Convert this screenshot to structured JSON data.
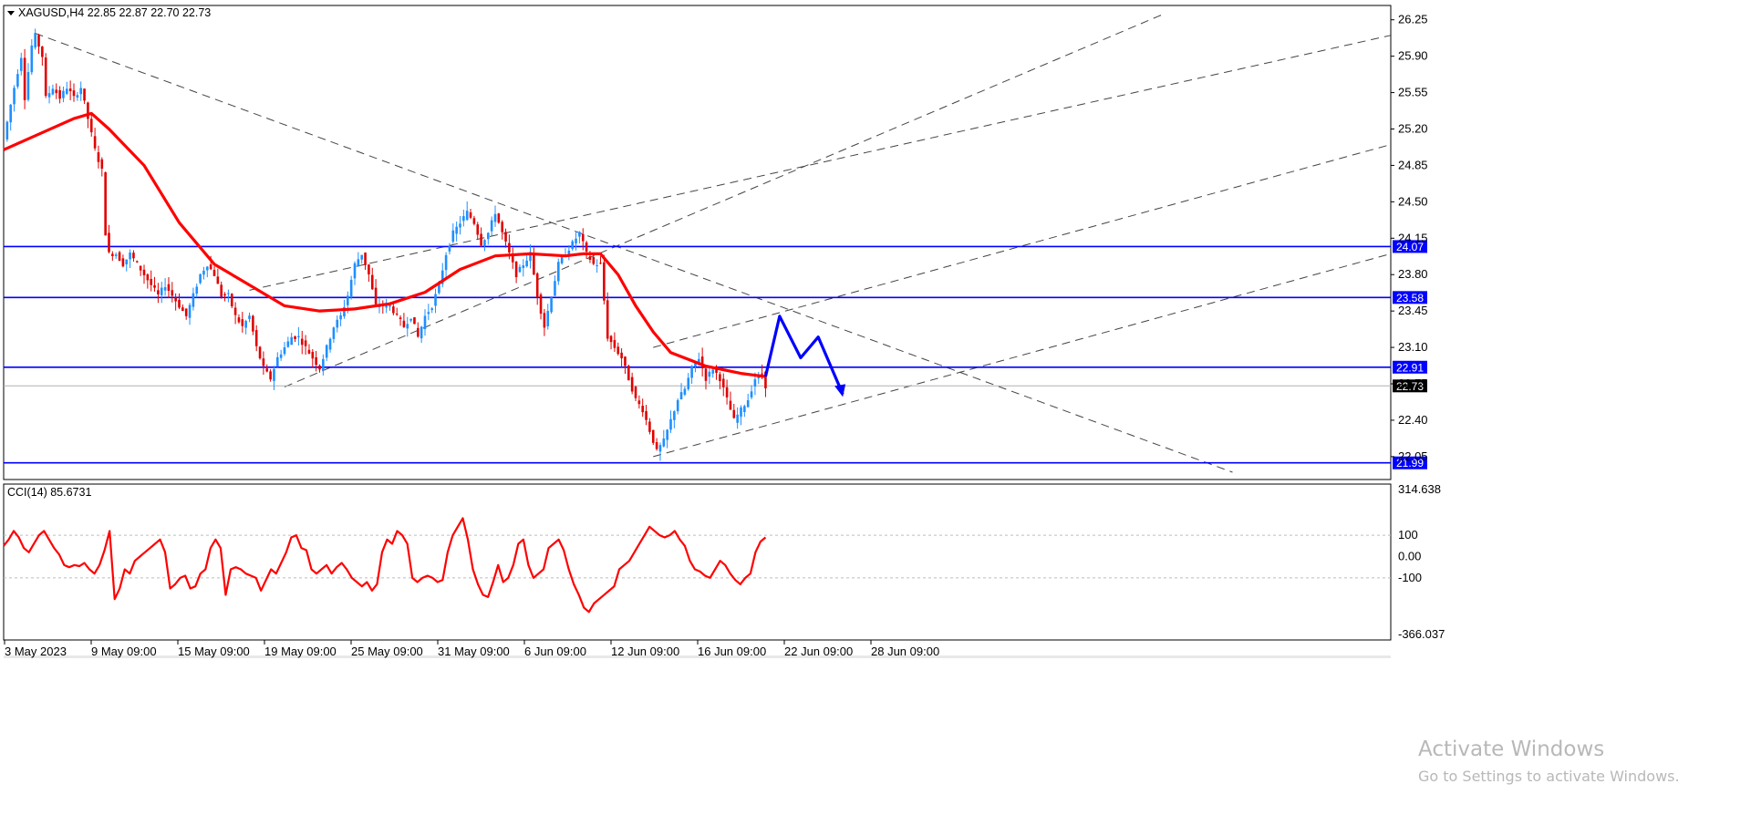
{
  "chart_data": [
    {
      "type": "candlestick",
      "title": "XAGUSD,H4  22.85 22.87 22.70 22.73",
      "symbol": "XAGUSD",
      "timeframe": "H4",
      "ohlc": {
        "open": 22.85,
        "high": 22.87,
        "low": 22.7,
        "close": 22.73
      },
      "ylim": [
        21.9,
        26.3
      ],
      "y_ticks": [
        "26.25",
        "25.90",
        "25.55",
        "25.20",
        "24.85",
        "24.50",
        "24.15",
        "23.80",
        "23.45",
        "23.10",
        "22.75",
        "22.40",
        "22.05"
      ],
      "x_ticks": [
        "3 May 2023",
        "9 May 09:00",
        "15 May 09:00",
        "19 May 09:00",
        "25 May 09:00",
        "31 May 09:00",
        "6 Jun 09:00",
        "12 Jun 09:00",
        "16 Jun 09:00",
        "22 Jun 09:00",
        "28 Jun 09:00"
      ],
      "current_price_label": "22.73",
      "levels": [
        {
          "value": 24.07,
          "label": "24.07",
          "color": "#0000ff"
        },
        {
          "value": 23.58,
          "label": "23.58",
          "color": "#0000ff"
        },
        {
          "value": 22.91,
          "label": "22.91",
          "color": "#0000ff"
        },
        {
          "value": 21.99,
          "label": "21.99",
          "color": "#0000ff"
        }
      ],
      "close_path": [
        [
          0,
          25.1
        ],
        [
          3,
          25.6
        ],
        [
          5,
          25.9
        ],
        [
          6,
          25.5
        ],
        [
          8,
          26.0
        ],
        [
          9,
          26.1
        ],
        [
          11,
          25.9
        ],
        [
          12,
          25.5
        ],
        [
          14,
          25.6
        ],
        [
          16,
          25.5
        ],
        [
          18,
          25.6
        ],
        [
          20,
          25.5
        ],
        [
          22,
          25.6
        ],
        [
          24,
          25.3
        ],
        [
          26,
          25.0
        ],
        [
          28,
          24.8
        ],
        [
          29,
          24.2
        ],
        [
          30,
          24.0
        ],
        [
          32,
          24.0
        ],
        [
          34,
          23.9
        ],
        [
          36,
          24.0
        ],
        [
          38,
          23.9
        ],
        [
          40,
          23.8
        ],
        [
          42,
          23.7
        ],
        [
          44,
          23.6
        ],
        [
          46,
          23.7
        ],
        [
          48,
          23.6
        ],
        [
          50,
          23.5
        ],
        [
          52,
          23.4
        ],
        [
          54,
          23.6
        ],
        [
          56,
          23.8
        ],
        [
          58,
          23.9
        ],
        [
          60,
          23.8
        ],
        [
          62,
          23.6
        ],
        [
          64,
          23.6
        ],
        [
          66,
          23.4
        ],
        [
          68,
          23.3
        ],
        [
          70,
          23.4
        ],
        [
          72,
          23.1
        ],
        [
          74,
          22.9
        ],
        [
          76,
          22.8
        ],
        [
          78,
          23.0
        ],
        [
          80,
          23.1
        ],
        [
          82,
          23.2
        ],
        [
          84,
          23.2
        ],
        [
          86,
          23.1
        ],
        [
          88,
          23.0
        ],
        [
          90,
          22.9
        ],
        [
          92,
          23.1
        ],
        [
          94,
          23.3
        ],
        [
          96,
          23.4
        ],
        [
          98,
          23.6
        ],
        [
          100,
          23.9
        ],
        [
          102,
          24.0
        ],
        [
          104,
          23.8
        ],
        [
          106,
          23.5
        ],
        [
          108,
          23.5
        ],
        [
          110,
          23.5
        ],
        [
          112,
          23.4
        ],
        [
          114,
          23.3
        ],
        [
          116,
          23.4
        ],
        [
          118,
          23.2
        ],
        [
          120,
          23.4
        ],
        [
          122,
          23.5
        ],
        [
          124,
          23.7
        ],
        [
          126,
          24.0
        ],
        [
          128,
          24.2
        ],
        [
          130,
          24.3
        ],
        [
          132,
          24.4
        ],
        [
          134,
          24.3
        ],
        [
          136,
          24.1
        ],
        [
          138,
          24.2
        ],
        [
          140,
          24.4
        ],
        [
          142,
          24.2
        ],
        [
          144,
          24.0
        ],
        [
          146,
          23.8
        ],
        [
          148,
          23.9
        ],
        [
          150,
          24.0
        ],
        [
          152,
          23.6
        ],
        [
          154,
          23.3
        ],
        [
          156,
          23.6
        ],
        [
          158,
          23.9
        ],
        [
          160,
          24.0
        ],
        [
          162,
          24.1
        ],
        [
          164,
          24.2
        ],
        [
          166,
          24.0
        ],
        [
          168,
          23.9
        ],
        [
          170,
          23.9
        ],
        [
          172,
          23.2
        ],
        [
          174,
          23.1
        ],
        [
          176,
          23.0
        ],
        [
          178,
          22.8
        ],
        [
          180,
          22.6
        ],
        [
          182,
          22.5
        ],
        [
          184,
          22.3
        ],
        [
          186,
          22.1
        ],
        [
          188,
          22.2
        ],
        [
          190,
          22.4
        ],
        [
          192,
          22.6
        ],
        [
          194,
          22.7
        ],
        [
          196,
          22.9
        ],
        [
          198,
          23.0
        ],
        [
          200,
          22.8
        ],
        [
          202,
          22.9
        ],
        [
          204,
          22.8
        ],
        [
          206,
          22.6
        ],
        [
          208,
          22.4
        ],
        [
          210,
          22.5
        ],
        [
          212,
          22.6
        ],
        [
          214,
          22.8
        ],
        [
          216,
          22.85
        ],
        [
          217,
          22.73
        ]
      ],
      "ma_path": [
        [
          0,
          25.0
        ],
        [
          10,
          25.15
        ],
        [
          20,
          25.3
        ],
        [
          25,
          25.35
        ],
        [
          30,
          25.2
        ],
        [
          40,
          24.85
        ],
        [
          50,
          24.3
        ],
        [
          60,
          23.9
        ],
        [
          70,
          23.7
        ],
        [
          80,
          23.5
        ],
        [
          90,
          23.45
        ],
        [
          100,
          23.47
        ],
        [
          110,
          23.52
        ],
        [
          120,
          23.63
        ],
        [
          130,
          23.85
        ],
        [
          140,
          23.98
        ],
        [
          150,
          24.0
        ],
        [
          160,
          23.98
        ],
        [
          165,
          24.0
        ],
        [
          170,
          24.0
        ],
        [
          175,
          23.8
        ],
        [
          180,
          23.5
        ],
        [
          185,
          23.25
        ],
        [
          190,
          23.05
        ],
        [
          200,
          22.92
        ],
        [
          210,
          22.85
        ],
        [
          217,
          22.82
        ]
      ],
      "forecast_path": [
        [
          217,
          22.82
        ],
        [
          221,
          23.4
        ],
        [
          227,
          23.0
        ],
        [
          232,
          23.2
        ],
        [
          239,
          22.65
        ]
      ],
      "overlay": [
        {
          "type": "trend",
          "from": [
            9,
            26.12
          ],
          "to": [
            350,
            21.9
          ]
        },
        {
          "type": "trend",
          "from": [
            80,
            22.72
          ],
          "to": [
            330,
            26.3
          ]
        },
        {
          "type": "trend",
          "from": [
            185,
            22.05
          ],
          "to": [
            395,
            24.0
          ]
        },
        {
          "type": "trend",
          "from": [
            185,
            23.1
          ],
          "to": [
            395,
            25.05
          ]
        },
        {
          "type": "trend",
          "from": [
            70,
            23.65
          ],
          "to": [
            395,
            26.1
          ]
        }
      ],
      "annotations": [
        "Activate Windows",
        "Go to Settings to activate Windows."
      ]
    },
    {
      "type": "line",
      "title": "CCI(14) 85.6731",
      "indicator": "CCI",
      "period": 14,
      "ylim": [
        -366.037,
        314.638
      ],
      "y_ticks": [
        "314.638",
        "100",
        "0.00",
        "-100",
        "-366.037"
      ],
      "levels": [
        100,
        -100
      ],
      "series": [
        {
          "values": [
            50,
            80,
            120,
            90,
            40,
            20,
            60,
            100,
            120,
            80,
            40,
            10,
            -40,
            -50,
            -40,
            -45,
            -30,
            -60,
            -80,
            -40,
            30,
            120,
            -200,
            -150,
            -60,
            -80,
            -20,
            0,
            20,
            40,
            60,
            80,
            20,
            -150,
            -130,
            -100,
            -90,
            -150,
            -140,
            -80,
            -60,
            40,
            80,
            40,
            -180,
            -60,
            -50,
            -60,
            -80,
            -90,
            -100,
            -160,
            -110,
            -60,
            -80,
            -30,
            20,
            90,
            100,
            40,
            30,
            -60,
            -80,
            -60,
            -40,
            -80,
            -50,
            -30,
            -60,
            -100,
            -120,
            -140,
            -120,
            -160,
            -130,
            20,
            80,
            60,
            120,
            100,
            60,
            -100,
            -120,
            -100,
            -90,
            -100,
            -120,
            -110,
            20,
            100,
            140,
            180,
            80,
            -60,
            -130,
            -180,
            -190,
            -120,
            -40,
            -120,
            -100,
            -40,
            60,
            80,
            -40,
            -100,
            -80,
            -60,
            40,
            60,
            80,
            30,
            -60,
            -130,
            -180,
            -240,
            -260,
            -220,
            -200,
            -180,
            -160,
            -140,
            -60,
            -40,
            -20,
            20,
            60,
            100,
            140,
            120,
            100,
            90,
            100,
            120,
            80,
            50,
            -20,
            -60,
            -70,
            -90,
            -100,
            -60,
            -20,
            -40,
            -80,
            -110,
            -130,
            -100,
            -80,
            20,
            70,
            90
          ]
        }
      ]
    }
  ]
}
